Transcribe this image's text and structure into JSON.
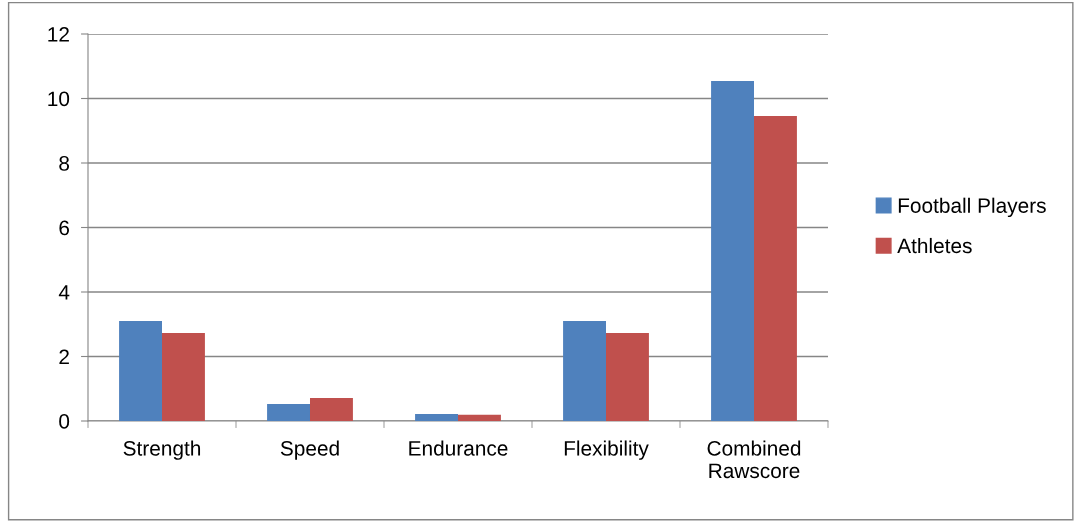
{
  "chart_data": {
    "type": "bar",
    "categories": [
      "Strength",
      "Speed",
      "Endurance",
      "Flexibility",
      "Combined\nRawscore"
    ],
    "series": [
      {
        "name": "Football Players",
        "color": "#4f81bd",
        "values": [
          3.1,
          0.53,
          0.22,
          3.1,
          10.54
        ]
      },
      {
        "name": "Athletes",
        "color": "#c0504d",
        "values": [
          2.73,
          0.71,
          0.19,
          2.73,
          9.46
        ]
      }
    ],
    "ylim": [
      0,
      12
    ],
    "yticks": [
      0,
      2,
      4,
      6,
      8,
      10,
      12
    ],
    "grid": "y",
    "legend": "right"
  }
}
